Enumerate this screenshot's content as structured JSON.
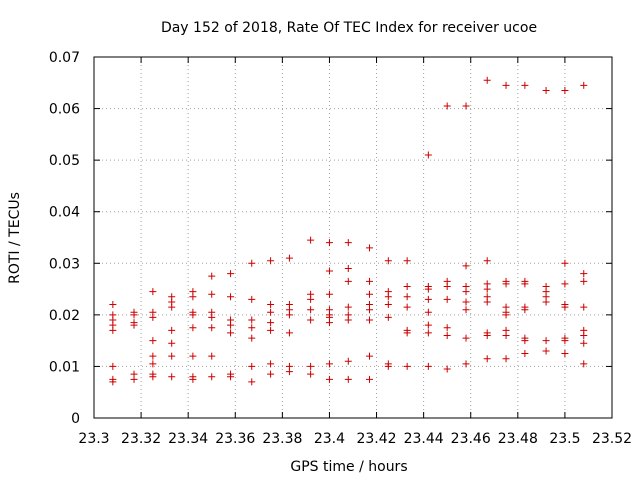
{
  "chart_data": {
    "type": "scatter",
    "title": "Day 152 of 2018, Rate Of TEC Index for receiver ucoe",
    "xlabel": "GPS time / hours",
    "ylabel": "ROTI / TECUs",
    "xlim": [
      23.3,
      23.52
    ],
    "ylim": [
      0,
      0.07
    ],
    "x_ticks": [
      23.3,
      23.32,
      23.34,
      23.36,
      23.38,
      23.4,
      23.42,
      23.44,
      23.46,
      23.48,
      23.5,
      23.52
    ],
    "x_tick_labels": [
      "23.3",
      "23.32",
      "23.34",
      "23.36",
      "23.38",
      "23.4",
      "23.42",
      "23.44",
      "23.46",
      "23.48",
      "23.5",
      "23.52"
    ],
    "y_ticks": [
      0,
      0.01,
      0.02,
      0.03,
      0.04,
      0.05,
      0.06,
      0.07
    ],
    "y_tick_labels": [
      "0",
      "0.01",
      "0.02",
      "0.03",
      "0.04",
      "0.05",
      "0.06",
      "0.07"
    ],
    "grid": true,
    "marker": "+",
    "color": "#cc0000",
    "series": [
      {
        "name": "ROTI",
        "points": [
          [
            23.308,
            0.022
          ],
          [
            23.308,
            0.02
          ],
          [
            23.308,
            0.019
          ],
          [
            23.308,
            0.018
          ],
          [
            23.308,
            0.017
          ],
          [
            23.308,
            0.01
          ],
          [
            23.308,
            0.0075
          ],
          [
            23.308,
            0.007
          ],
          [
            23.317,
            0.0205
          ],
          [
            23.317,
            0.02
          ],
          [
            23.317,
            0.0185
          ],
          [
            23.317,
            0.018
          ],
          [
            23.317,
            0.0085
          ],
          [
            23.317,
            0.0075
          ],
          [
            23.325,
            0.0245
          ],
          [
            23.325,
            0.0205
          ],
          [
            23.325,
            0.0195
          ],
          [
            23.325,
            0.015
          ],
          [
            23.325,
            0.012
          ],
          [
            23.325,
            0.0105
          ],
          [
            23.325,
            0.0085
          ],
          [
            23.325,
            0.008
          ],
          [
            23.333,
            0.0235
          ],
          [
            23.333,
            0.0225
          ],
          [
            23.333,
            0.0215
          ],
          [
            23.333,
            0.017
          ],
          [
            23.333,
            0.0145
          ],
          [
            23.333,
            0.012
          ],
          [
            23.333,
            0.008
          ],
          [
            23.342,
            0.0245
          ],
          [
            23.342,
            0.0235
          ],
          [
            23.342,
            0.0205
          ],
          [
            23.342,
            0.02
          ],
          [
            23.342,
            0.0175
          ],
          [
            23.342,
            0.012
          ],
          [
            23.342,
            0.008
          ],
          [
            23.342,
            0.0075
          ],
          [
            23.35,
            0.0275
          ],
          [
            23.35,
            0.024
          ],
          [
            23.35,
            0.0205
          ],
          [
            23.35,
            0.0195
          ],
          [
            23.35,
            0.0175
          ],
          [
            23.35,
            0.012
          ],
          [
            23.35,
            0.008
          ],
          [
            23.358,
            0.028
          ],
          [
            23.358,
            0.0235
          ],
          [
            23.358,
            0.019
          ],
          [
            23.358,
            0.018
          ],
          [
            23.358,
            0.0165
          ],
          [
            23.358,
            0.0085
          ],
          [
            23.358,
            0.008
          ],
          [
            23.367,
            0.03
          ],
          [
            23.367,
            0.023
          ],
          [
            23.367,
            0.019
          ],
          [
            23.367,
            0.0175
          ],
          [
            23.367,
            0.0155
          ],
          [
            23.367,
            0.01
          ],
          [
            23.367,
            0.007
          ],
          [
            23.375,
            0.0305
          ],
          [
            23.375,
            0.022
          ],
          [
            23.375,
            0.0205
          ],
          [
            23.375,
            0.0185
          ],
          [
            23.375,
            0.017
          ],
          [
            23.375,
            0.0105
          ],
          [
            23.375,
            0.0085
          ],
          [
            23.383,
            0.031
          ],
          [
            23.383,
            0.022
          ],
          [
            23.383,
            0.021
          ],
          [
            23.383,
            0.02
          ],
          [
            23.383,
            0.0165
          ],
          [
            23.383,
            0.01
          ],
          [
            23.383,
            0.009
          ],
          [
            23.392,
            0.0345
          ],
          [
            23.392,
            0.024
          ],
          [
            23.392,
            0.023
          ],
          [
            23.392,
            0.021
          ],
          [
            23.392,
            0.019
          ],
          [
            23.392,
            0.01
          ],
          [
            23.392,
            0.0085
          ],
          [
            23.4,
            0.034
          ],
          [
            23.4,
            0.0285
          ],
          [
            23.4,
            0.024
          ],
          [
            23.4,
            0.021
          ],
          [
            23.4,
            0.02
          ],
          [
            23.4,
            0.0195
          ],
          [
            23.4,
            0.0185
          ],
          [
            23.4,
            0.0105
          ],
          [
            23.4,
            0.0075
          ],
          [
            23.408,
            0.034
          ],
          [
            23.408,
            0.029
          ],
          [
            23.408,
            0.0265
          ],
          [
            23.408,
            0.0215
          ],
          [
            23.408,
            0.02
          ],
          [
            23.408,
            0.019
          ],
          [
            23.408,
            0.011
          ],
          [
            23.408,
            0.0075
          ],
          [
            23.417,
            0.033
          ],
          [
            23.417,
            0.0265
          ],
          [
            23.417,
            0.024
          ],
          [
            23.417,
            0.022
          ],
          [
            23.417,
            0.021
          ],
          [
            23.417,
            0.019
          ],
          [
            23.417,
            0.012
          ],
          [
            23.417,
            0.0075
          ],
          [
            23.425,
            0.0305
          ],
          [
            23.425,
            0.0245
          ],
          [
            23.425,
            0.0235
          ],
          [
            23.425,
            0.022
          ],
          [
            23.425,
            0.0195
          ],
          [
            23.425,
            0.0105
          ],
          [
            23.425,
            0.01
          ],
          [
            23.433,
            0.0305
          ],
          [
            23.433,
            0.0255
          ],
          [
            23.433,
            0.0235
          ],
          [
            23.433,
            0.0215
          ],
          [
            23.433,
            0.017
          ],
          [
            23.433,
            0.0165
          ],
          [
            23.433,
            0.01
          ],
          [
            23.442,
            0.051
          ],
          [
            23.442,
            0.0255
          ],
          [
            23.442,
            0.025
          ],
          [
            23.442,
            0.023
          ],
          [
            23.442,
            0.0205
          ],
          [
            23.442,
            0.018
          ],
          [
            23.442,
            0.0165
          ],
          [
            23.442,
            0.01
          ],
          [
            23.45,
            0.0605
          ],
          [
            23.45,
            0.0265
          ],
          [
            23.45,
            0.0255
          ],
          [
            23.45,
            0.023
          ],
          [
            23.45,
            0.0175
          ],
          [
            23.45,
            0.016
          ],
          [
            23.45,
            0.0095
          ],
          [
            23.458,
            0.0605
          ],
          [
            23.458,
            0.0295
          ],
          [
            23.458,
            0.0255
          ],
          [
            23.458,
            0.0245
          ],
          [
            23.458,
            0.0225
          ],
          [
            23.458,
            0.021
          ],
          [
            23.458,
            0.0155
          ],
          [
            23.458,
            0.0105
          ],
          [
            23.467,
            0.0655
          ],
          [
            23.467,
            0.0305
          ],
          [
            23.467,
            0.026
          ],
          [
            23.467,
            0.025
          ],
          [
            23.467,
            0.0235
          ],
          [
            23.467,
            0.0225
          ],
          [
            23.467,
            0.0165
          ],
          [
            23.467,
            0.016
          ],
          [
            23.467,
            0.0115
          ],
          [
            23.475,
            0.0645
          ],
          [
            23.475,
            0.0265
          ],
          [
            23.475,
            0.026
          ],
          [
            23.475,
            0.0215
          ],
          [
            23.475,
            0.0205
          ],
          [
            23.475,
            0.02
          ],
          [
            23.475,
            0.017
          ],
          [
            23.475,
            0.016
          ],
          [
            23.475,
            0.0115
          ],
          [
            23.483,
            0.0645
          ],
          [
            23.483,
            0.0265
          ],
          [
            23.483,
            0.026
          ],
          [
            23.483,
            0.0215
          ],
          [
            23.483,
            0.021
          ],
          [
            23.483,
            0.0155
          ],
          [
            23.483,
            0.015
          ],
          [
            23.483,
            0.0125
          ],
          [
            23.492,
            0.0635
          ],
          [
            23.492,
            0.0255
          ],
          [
            23.492,
            0.0245
          ],
          [
            23.492,
            0.0235
          ],
          [
            23.492,
            0.0225
          ],
          [
            23.492,
            0.015
          ],
          [
            23.492,
            0.013
          ],
          [
            23.5,
            0.0635
          ],
          [
            23.5,
            0.03
          ],
          [
            23.5,
            0.026
          ],
          [
            23.5,
            0.022
          ],
          [
            23.5,
            0.0215
          ],
          [
            23.5,
            0.0155
          ],
          [
            23.5,
            0.015
          ],
          [
            23.5,
            0.0125
          ],
          [
            23.508,
            0.0645
          ],
          [
            23.508,
            0.028
          ],
          [
            23.508,
            0.0265
          ],
          [
            23.508,
            0.0215
          ],
          [
            23.508,
            0.017
          ],
          [
            23.508,
            0.016
          ],
          [
            23.508,
            0.0145
          ],
          [
            23.508,
            0.0105
          ]
        ]
      }
    ]
  }
}
